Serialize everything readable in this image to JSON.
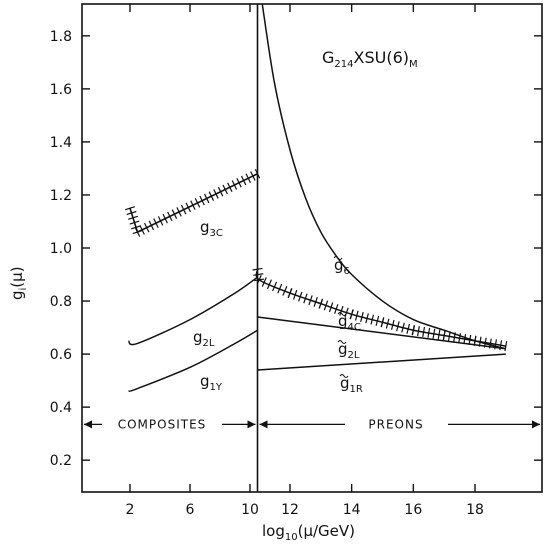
{
  "chart_data": {
    "type": "line",
    "title": "G214XSU(6)M",
    "title_parts": {
      "base": "G",
      "sub": "214",
      "rest": "XSU(6)",
      "sub2": "M"
    },
    "xlabel": "log10(μ/GeV)",
    "xlabel_parts": {
      "pre": "log",
      "sub": "10",
      "post": "(μ/GeV)"
    },
    "ylabel": "gi(μ)",
    "ylabel_parts": {
      "pre": "g",
      "sub": "i",
      "post": "(μ)"
    },
    "xlim": [
      0,
      20.5
    ],
    "ylim": [
      0.08,
      1.92
    ],
    "xtick_labels": [
      "2",
      "6",
      "10",
      "12",
      "14",
      "16",
      "18"
    ],
    "xtick_values": [
      2,
      6,
      10,
      12,
      14,
      16,
      18
    ],
    "ytick_labels": [
      "0.2",
      "0.4",
      "0.6",
      "0.8",
      "1.0",
      "1.2",
      "1.4",
      "1.6",
      "1.8"
    ],
    "ytick_values": [
      0.2,
      0.4,
      0.6,
      0.8,
      1.0,
      1.2,
      1.4,
      1.6,
      1.8
    ],
    "left_segment_scale": {
      "x_from": 2,
      "x_to": 10,
      "x_at_boundary": 10.5
    },
    "regions": {
      "boundary_x": 10.5,
      "boundary_y": 0.32,
      "left_label": "COMPOSITES",
      "right_label": "PREONS"
    },
    "series": [
      {
        "name": "g3C",
        "label": {
          "main": "g",
          "sub": "3C"
        },
        "tilde": false,
        "hatched": true,
        "x": [
          2.0,
          2.5,
          10.5
        ],
        "y": [
          1.15,
          1.06,
          1.28
        ]
      },
      {
        "name": "g2L",
        "label": {
          "main": "g",
          "sub": "2L"
        },
        "tilde": false,
        "hatched": false,
        "x": [
          1.9,
          2.5,
          6.0,
          9.0,
          10.5
        ],
        "y": [
          0.65,
          0.64,
          0.73,
          0.83,
          0.89
        ]
      },
      {
        "name": "g1Y",
        "label": {
          "main": "g",
          "sub": "1Y"
        },
        "tilde": false,
        "hatched": false,
        "x": [
          1.9,
          2.5,
          6.0,
          9.0,
          10.5
        ],
        "y": [
          0.46,
          0.47,
          0.55,
          0.64,
          0.69
        ]
      },
      {
        "name": "g̃6",
        "label": {
          "main": "g",
          "sub": "6"
        },
        "tilde": true,
        "hatched": false,
        "x": [
          11.1,
          11.5,
          12.0,
          12.5,
          13.0,
          13.5,
          14.0,
          15.0,
          16.0,
          17.0,
          18.0,
          19.0
        ],
        "y": [
          1.92,
          1.62,
          1.37,
          1.19,
          1.06,
          0.97,
          0.9,
          0.8,
          0.73,
          0.69,
          0.65,
          0.62
        ]
      },
      {
        "name": "g̃4C",
        "label": {
          "main": "g",
          "sub": "4C"
        },
        "tilde": true,
        "hatched": true,
        "x": [
          10.5,
          11.0,
          12.0,
          13.0,
          14.0,
          15.0,
          16.0,
          17.0,
          18.0,
          19.0
        ],
        "y": [
          0.92,
          0.88,
          0.83,
          0.79,
          0.75,
          0.72,
          0.69,
          0.67,
          0.65,
          0.63
        ]
      },
      {
        "name": "g̃2L",
        "label": {
          "main": "g",
          "sub": "2L"
        },
        "tilde": true,
        "hatched": false,
        "x": [
          10.5,
          19.0
        ],
        "y": [
          0.74,
          0.62
        ]
      },
      {
        "name": "g̃1R",
        "label": {
          "main": "g",
          "sub": "1R"
        },
        "tilde": true,
        "hatched": false,
        "x": [
          10.5,
          19.0
        ],
        "y": [
          0.54,
          0.6
        ]
      }
    ]
  }
}
